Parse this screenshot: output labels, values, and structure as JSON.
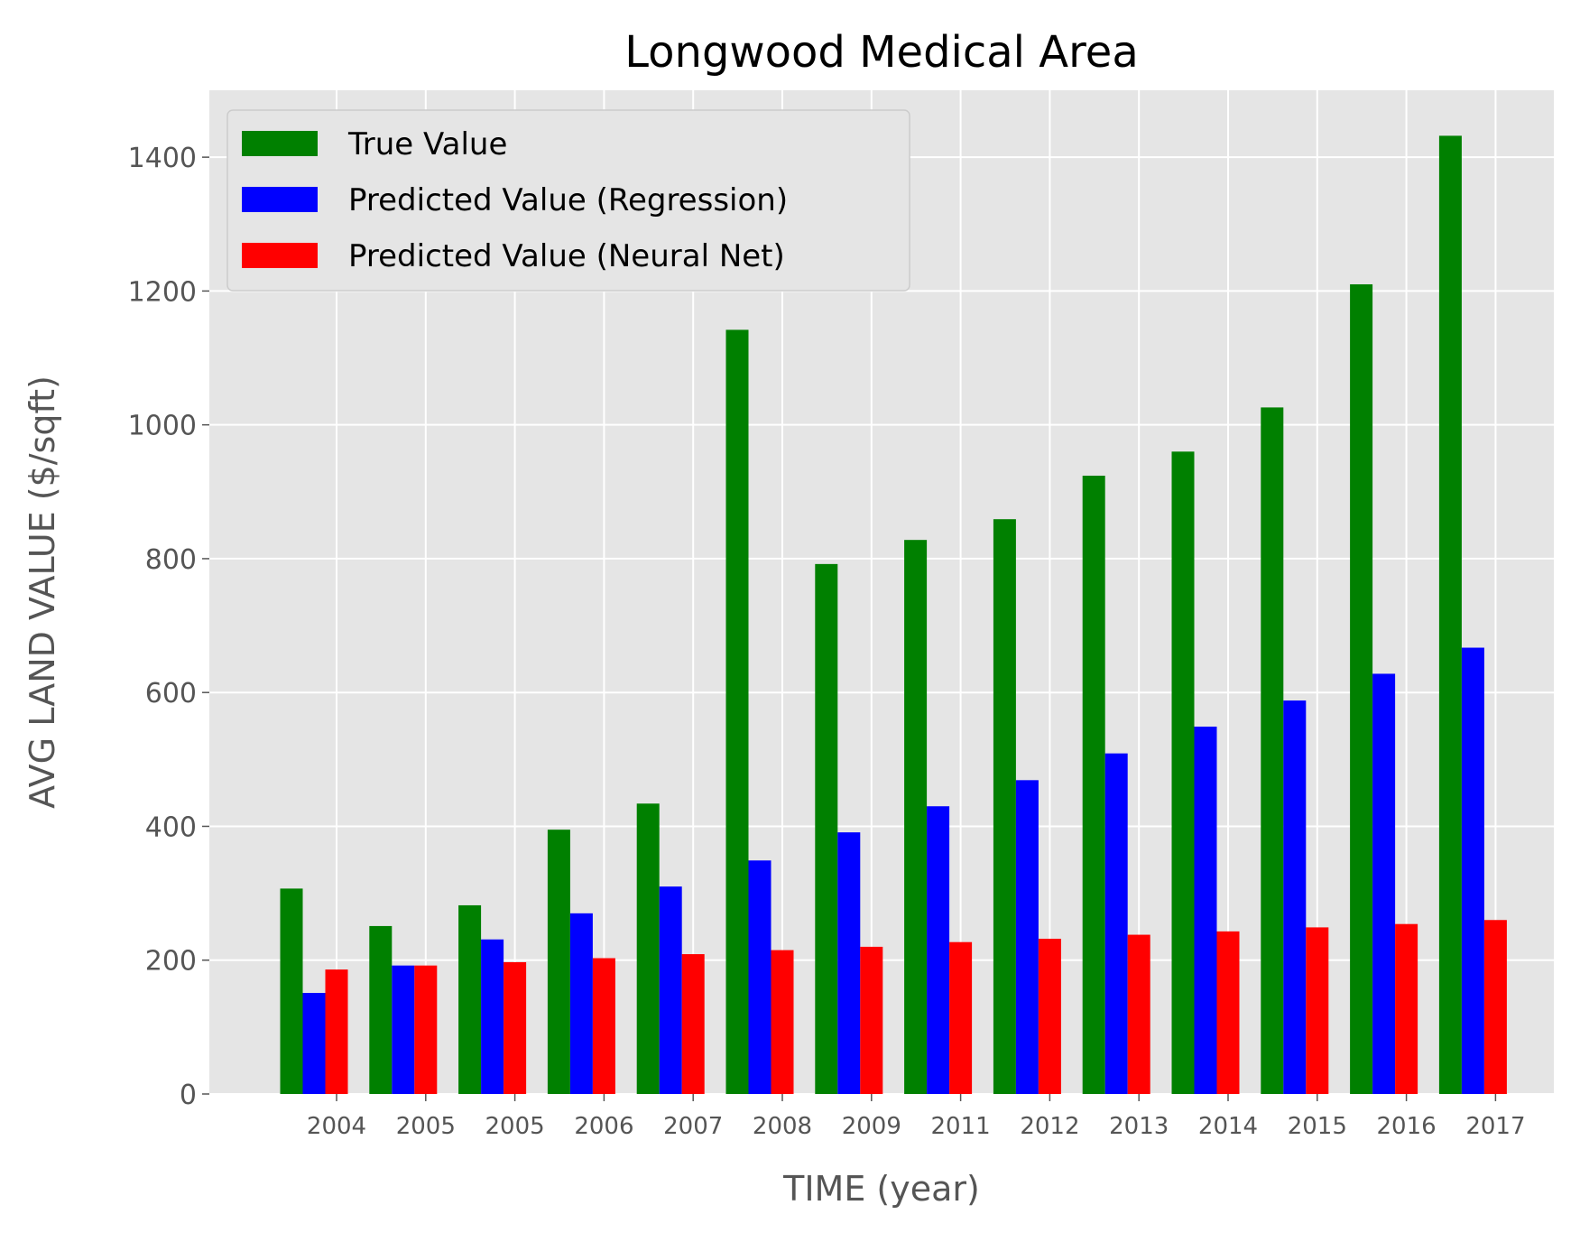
{
  "chart_data": {
    "type": "bar",
    "title": "Longwood Medical Area",
    "xlabel": "TIME (year)",
    "ylabel": "AVG LAND VALUE ($/sqft)",
    "categories": [
      "2004",
      "2005",
      "2005",
      "2006",
      "2007",
      "2008",
      "2009",
      "2011",
      "2012",
      "2013",
      "2014",
      "2015",
      "2016",
      "2017"
    ],
    "ylim": [
      0,
      1500
    ],
    "yticks": [
      0,
      200,
      400,
      600,
      800,
      1000,
      1200,
      1400
    ],
    "grid": true,
    "legend_position": "top-left",
    "series": [
      {
        "name": "True Value",
        "color": "#008000",
        "values": [
          307,
          251,
          282,
          395,
          434,
          1142,
          792,
          828,
          859,
          924,
          960,
          1026,
          1210,
          1432
        ]
      },
      {
        "name": "Predicted Value (Regression)",
        "color": "#0000ff",
        "values": [
          151,
          192,
          231,
          270,
          310,
          349,
          391,
          430,
          469,
          509,
          549,
          588,
          628,
          667
        ]
      },
      {
        "name": "Predicted Value (Neural Net)",
        "color": "#ff0000",
        "values": [
          186,
          192,
          197,
          203,
          209,
          215,
          220,
          227,
          232,
          238,
          243,
          249,
          254,
          260
        ]
      }
    ]
  }
}
